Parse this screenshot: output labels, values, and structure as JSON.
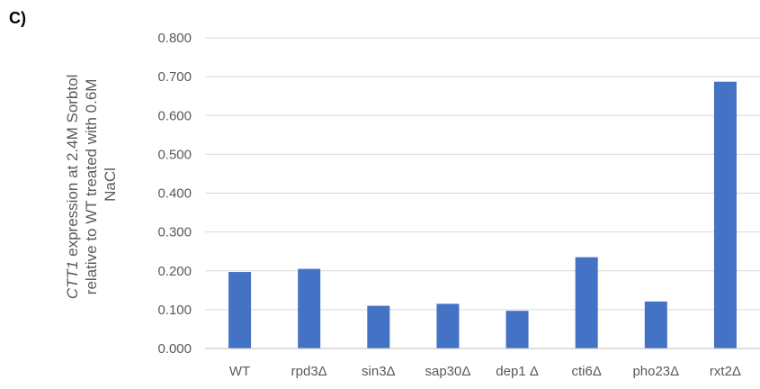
{
  "panel_label": "C)",
  "chart_data": {
    "type": "bar",
    "categories": [
      "WT",
      "rpd3Δ",
      "sin3Δ",
      "sap30Δ",
      "dep1 Δ",
      "cti6Δ",
      "pho23Δ",
      "rxt2Δ"
    ],
    "values": [
      0.197,
      0.205,
      0.11,
      0.115,
      0.097,
      0.235,
      0.121,
      0.687
    ],
    "title": "",
    "xlabel": "",
    "ylabel": {
      "gene": "CTT1",
      "line1_rest": " expression at 2.4M Sorbtol",
      "line2": "relative to WT treated with 0.6M",
      "line3": "NaCl"
    },
    "ylim": [
      0,
      0.8
    ],
    "yticks": [
      "0.000",
      "0.100",
      "0.200",
      "0.300",
      "0.400",
      "0.500",
      "0.600",
      "0.700",
      "0.800"
    ],
    "grid": true,
    "legend": "none",
    "bar_color": "#4472c4"
  }
}
